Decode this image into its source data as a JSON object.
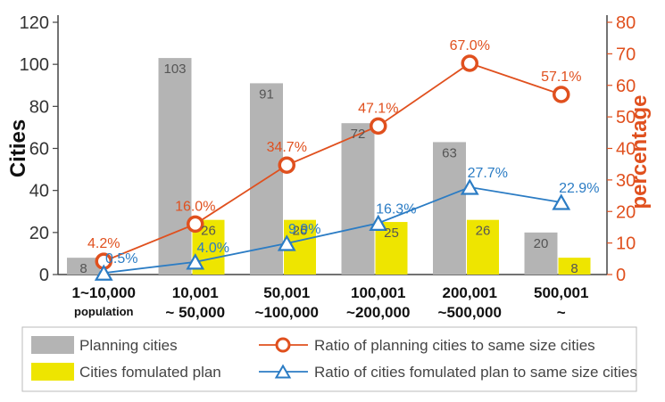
{
  "chart_data": {
    "type": "bar",
    "categories": [
      {
        "line1": "1~10,000",
        "line2": "population"
      },
      {
        "line1": "10,001",
        "line2": "~ 50,000"
      },
      {
        "line1": "50,001",
        "line2": "~100,000"
      },
      {
        "line1": "100,001",
        "line2": "~200,000"
      },
      {
        "line1": "200,001",
        "line2": "~500,000"
      },
      {
        "line1": "500,001",
        "line2": "~"
      }
    ],
    "ylabel_left": "Cities",
    "ylabel_right": "percentage",
    "ylim_left": [
      0,
      120
    ],
    "yticks_left": [
      "0",
      "20",
      "40",
      "60",
      "80",
      "100",
      "120"
    ],
    "ylim_right": [
      0,
      80
    ],
    "yticks_right": [
      "0",
      "10",
      "20",
      "30",
      "40",
      "50",
      "60",
      "70",
      "80"
    ],
    "bar_series": [
      {
        "name": "Planning cities",
        "color": "#b4b4b4",
        "values": [
          8,
          103,
          91,
          72,
          63,
          20
        ],
        "labels": [
          "8",
          "103",
          "91",
          "72",
          "63",
          "20"
        ]
      },
      {
        "name": "Cities fomulated plan",
        "color": "#eee500",
        "values": [
          0,
          26,
          26,
          25,
          26,
          8
        ],
        "labels": [
          "",
          "26",
          "26",
          "25",
          "26",
          "8"
        ]
      }
    ],
    "line_series": [
      {
        "name": "Ratio of planning cities to same size cities",
        "color": "#e0501e",
        "marker": "circle",
        "values": [
          4.2,
          16.0,
          34.7,
          47.1,
          67.0,
          57.1
        ],
        "labels": [
          "4.2%",
          "16.0%",
          "34.7%",
          "47.1%",
          "67.0%",
          "57.1%"
        ]
      },
      {
        "name": "Ratio of cities  fomulated plan to same size cities",
        "color": "#2b7cc4",
        "marker": "triangle",
        "values": [
          0.5,
          4.0,
          9.9,
          16.3,
          27.7,
          22.9
        ],
        "labels": [
          "0.5%",
          "4.0%",
          "9.9%",
          "16.3%",
          "27.7%",
          "22.9%"
        ]
      }
    ]
  }
}
